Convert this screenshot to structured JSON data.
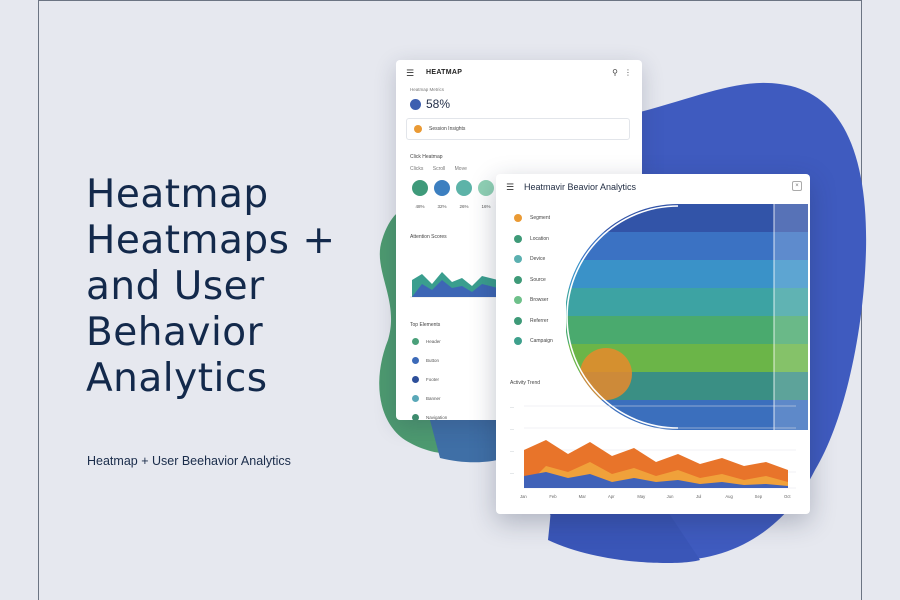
{
  "headline": {
    "line1": "Heatmap",
    "line2": "Heatmaps +",
    "line3": "and User",
    "line4": "Behavior",
    "line5": "Analytics"
  },
  "subtitle": "Heatmap + User Beehavior Analytics",
  "colors": {
    "background": "#e6e8ef",
    "blob_blue": "#3f5bbf",
    "blob_green": "#4d9a70",
    "headline": "#13294b",
    "accent_orange": "#ea7a2c"
  },
  "back_panel": {
    "menu_icon": "menu-icon",
    "title": "HEATMAP",
    "search_icon": "search-icon",
    "more_icon": "more-vertical-icon",
    "metric_label": "Heatmap Metrics",
    "metric_value": "58%",
    "card_text": "Session Insights",
    "section1": "Click Heatmap",
    "tabs": [
      "Clicks",
      "Scroll",
      "Move"
    ],
    "circle_labels": [
      "48%",
      "32%",
      "26%",
      "16%"
    ],
    "section2": "Attention Scores",
    "section3": "Top Elements",
    "list_items": [
      "Header",
      "Button",
      "Footer",
      "Banner",
      "Navigation"
    ]
  },
  "front_panel": {
    "menu_icon": "menu-icon",
    "title": "Heatmavir Beavior Analytics",
    "close_icon": "close-icon",
    "list_items": [
      "Segment",
      "Location",
      "Device",
      "Source",
      "Browser",
      "Referrer",
      "Campaign"
    ],
    "trend_section": "Activity Trend",
    "trend_xlabels": [
      "Jan",
      "Feb",
      "Mar",
      "Apr",
      "May",
      "Jun",
      "Jul",
      "Aug",
      "Sep",
      "Oct"
    ]
  }
}
